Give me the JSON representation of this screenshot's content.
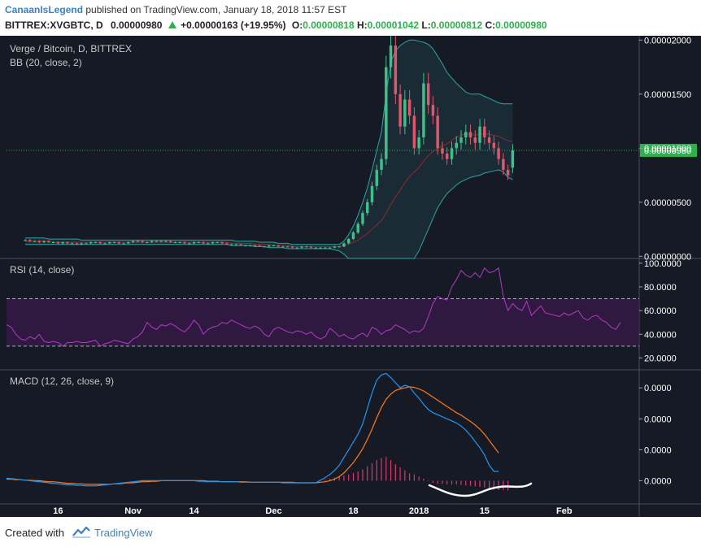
{
  "header": {
    "author": "CanaanIsLegend",
    "published_text": "published on TradingView.com, January 18, 2018 11:57 EST",
    "symbol": "BITTREX:XVGBTC, D",
    "last": "0.00000980",
    "change": "+0.00000163 (+19.95%)",
    "open_label": "O:",
    "open": "0.00000818",
    "high_label": "H:",
    "high": "0.00001042",
    "low_label": "L:",
    "low": "0.00000812",
    "close_label": "C:",
    "close": "0.00000980"
  },
  "footer": {
    "created_with": "Created with",
    "brand": "TradingView"
  },
  "colors": {
    "background": "#161a25",
    "up": "#3fbf8a",
    "down": "#e0566b",
    "bb_upper_lower": "#2aa5a5",
    "bb_basis": "#8e2b2b",
    "rsi": "#b13bc4",
    "macd": "#2196f3",
    "signal": "#ff7a1a",
    "histogram": "#e0366b",
    "last_price_tag": "#2bb24c"
  },
  "chart_data": [
    {
      "type": "candlestick",
      "title": "Verge / Bitcoin, D, BITTREX",
      "indicator_label": "BB (20, close, 2)",
      "y_ticks": [
        "0.00002000",
        "0.00001500",
        "0.00001000",
        "0.00000500",
        "0.00000000"
      ],
      "y_tick_values": [
        2e-05,
        1.5e-05,
        1e-05,
        5e-06,
        0
      ],
      "ylim": [
        -2e-07,
        2.04e-05
      ],
      "last_price_label": "0.00000980",
      "last_price": 9.8e-06,
      "x_start": "2017-10-05",
      "x_end": "2018-02-17",
      "candles": {
        "start": "2017-10-09",
        "close": [
          1.5e-06,
          1.4e-06,
          1.4e-06,
          1.3e-06,
          1.4e-06,
          1.3e-06,
          1.3e-06,
          1.2e-06,
          1.3e-06,
          1.2e-06,
          1.2e-06,
          1.1e-06,
          1.2e-06,
          1.2e-06,
          1.3e-06,
          1.3e-06,
          1.2e-06,
          1.2e-06,
          1.3e-06,
          1.3e-06,
          1.2e-06,
          1.2e-06,
          1.3e-06,
          1.4e-06,
          1.4e-06,
          1.3e-06,
          1.3e-06,
          1.4e-06,
          1.4e-06,
          1.4e-06,
          1.4e-06,
          1.3e-06,
          1.3e-06,
          1.3e-06,
          1.2e-06,
          1.2e-06,
          1.3e-06,
          1.3e-06,
          1.2e-06,
          1.2e-06,
          1.3e-06,
          1.3e-06,
          1.2e-06,
          1.1e-06,
          1.1e-06,
          1.1e-06,
          1e-06,
          1e-06,
          1e-06,
          1e-06,
          9e-07,
          9e-07,
          1e-06,
          1e-06,
          9e-07,
          9e-07,
          9e-07,
          8e-07,
          8e-07,
          9e-07,
          9e-07,
          8e-07,
          8e-07,
          8e-07,
          8e-07,
          8e-07,
          9e-07,
          9e-07,
          1.2e-06,
          1.6e-06,
          2.2e-06,
          3e-06,
          4e-06,
          5e-06,
          6.5e-06,
          8e-06,
          9e-06,
          1.75e-05,
          1.95e-05,
          1.5e-05,
          1.2e-05,
          1.45e-05,
          1.3e-05,
          1e-05,
          1.1e-05,
          1.6e-05,
          1.4e-05,
          1.3e-05,
          1e-05,
          9.5e-06,
          9e-06,
          1e-05,
          1.05e-05,
          1.1e-05,
          1.15e-05,
          1.1e-05,
          1.05e-05,
          1.2e-05,
          1.1e-05,
          1.05e-05,
          1e-05,
          9e-06,
          8e-06,
          7.5e-06,
          9.8e-06
        ],
        "open": [
          1.5e-06,
          1.5e-06,
          1.4e-06,
          1.4e-06,
          1.3e-06,
          1.4e-06,
          1.3e-06,
          1.3e-06,
          1.2e-06,
          1.3e-06,
          1.2e-06,
          1.2e-06,
          1.1e-06,
          1.2e-06,
          1.2e-06,
          1.3e-06,
          1.3e-06,
          1.2e-06,
          1.2e-06,
          1.3e-06,
          1.3e-06,
          1.2e-06,
          1.2e-06,
          1.3e-06,
          1.4e-06,
          1.4e-06,
          1.3e-06,
          1.3e-06,
          1.4e-06,
          1.4e-06,
          1.4e-06,
          1.4e-06,
          1.3e-06,
          1.3e-06,
          1.3e-06,
          1.2e-06,
          1.2e-06,
          1.3e-06,
          1.3e-06,
          1.2e-06,
          1.2e-06,
          1.3e-06,
          1.3e-06,
          1.2e-06,
          1.1e-06,
          1.1e-06,
          1.1e-06,
          1e-06,
          1e-06,
          1e-06,
          1e-06,
          9e-07,
          9e-07,
          1e-06,
          1e-06,
          9e-07,
          9e-07,
          9e-07,
          8e-07,
          8e-07,
          9e-07,
          9e-07,
          8e-07,
          8e-07,
          8e-07,
          8e-07,
          8e-07,
          9e-07,
          9e-07,
          1.2e-06,
          1.6e-06,
          2.2e-06,
          3e-06,
          4e-06,
          5e-06,
          6.5e-06,
          8e-06,
          9e-06,
          1.75e-05,
          1.95e-05,
          1.5e-05,
          1.2e-05,
          1.45e-05,
          1.3e-05,
          1e-05,
          1.1e-05,
          1.6e-05,
          1.4e-05,
          1.3e-05,
          1e-05,
          9.5e-06,
          9e-06,
          1e-05,
          1.05e-05,
          1.1e-05,
          1.15e-05,
          1.1e-05,
          1.05e-05,
          1.2e-05,
          1.1e-05,
          1.05e-05,
          1e-05,
          9e-06,
          8e-06,
          8.2e-06
        ]
      },
      "bb_upper": [
        1.7e-06,
        1.7e-06,
        1.7e-06,
        1.7e-06,
        1.7e-06,
        1.6e-06,
        1.6e-06,
        1.6e-06,
        1.6e-06,
        1.6e-06,
        1.6e-06,
        1.6e-06,
        1.5e-06,
        1.5e-06,
        1.5e-06,
        1.5e-06,
        1.5e-06,
        1.5e-06,
        1.5e-06,
        1.5e-06,
        1.5e-06,
        1.5e-06,
        1.5e-06,
        1.5e-06,
        1.5e-06,
        1.5e-06,
        1.5e-06,
        1.5e-06,
        1.5e-06,
        1.5e-06,
        1.5e-06,
        1.5e-06,
        1.5e-06,
        1.5e-06,
        1.5e-06,
        1.5e-06,
        1.5e-06,
        1.5e-06,
        1.5e-06,
        1.5e-06,
        1.5e-06,
        1.5e-06,
        1.5e-06,
        1.5e-06,
        1.5e-06,
        1.4e-06,
        1.4e-06,
        1.4e-06,
        1.4e-06,
        1.4e-06,
        1.3e-06,
        1.3e-06,
        1.3e-06,
        1.3e-06,
        1.2e-06,
        1.2e-06,
        1.2e-06,
        1.1e-06,
        1.1e-06,
        1.1e-06,
        1.1e-06,
        1.1e-06,
        1.1e-06,
        1.1e-06,
        1.1e-06,
        1.1e-06,
        1.1e-06,
        1.1e-06,
        1.4e-06,
        2e-06,
        2.8e-06,
        3.8e-06,
        5e-06,
        6.3e-06,
        8e-06,
        9.8e-06,
        1.15e-05,
        1.5e-05,
        1.8e-05,
        1.9e-05,
        1.95e-05,
        1.98e-05,
        2e-05,
        2e-05,
        1.99e-05,
        1.98e-05,
        1.96e-05,
        1.92e-05,
        1.85e-05,
        1.78e-05,
        1.7e-05,
        1.65e-05,
        1.6e-05,
        1.56e-05,
        1.52e-05,
        1.5e-05,
        1.5e-05,
        1.5e-05,
        1.48e-05,
        1.46e-05,
        1.44e-05,
        1.42e-05,
        1.41e-05,
        1.41e-05,
        1.41e-05
      ],
      "bb_basis": [
        1.4e-06,
        1.4e-06,
        1.4e-06,
        1.4e-06,
        1.4e-06,
        1.4e-06,
        1.3e-06,
        1.3e-06,
        1.3e-06,
        1.3e-06,
        1.3e-06,
        1.3e-06,
        1.3e-06,
        1.3e-06,
        1.3e-06,
        1.3e-06,
        1.3e-06,
        1.3e-06,
        1.3e-06,
        1.3e-06,
        1.3e-06,
        1.3e-06,
        1.3e-06,
        1.3e-06,
        1.3e-06,
        1.3e-06,
        1.3e-06,
        1.3e-06,
        1.3e-06,
        1.3e-06,
        1.3e-06,
        1.3e-06,
        1.3e-06,
        1.3e-06,
        1.3e-06,
        1.3e-06,
        1.3e-06,
        1.3e-06,
        1.3e-06,
        1.3e-06,
        1.3e-06,
        1.3e-06,
        1.3e-06,
        1.3e-06,
        1.2e-06,
        1.2e-06,
        1.2e-06,
        1.2e-06,
        1.2e-06,
        1.1e-06,
        1.1e-06,
        1.1e-06,
        1.1e-06,
        1e-06,
        1e-06,
        1e-06,
        1e-06,
        9e-07,
        9e-07,
        9e-07,
        9e-07,
        9e-07,
        9e-07,
        9e-07,
        9e-07,
        9e-07,
        9e-07,
        9e-07,
        1e-06,
        1.1e-06,
        1.3e-06,
        1.5e-06,
        1.8e-06,
        2.1e-06,
        2.5e-06,
        2.9e-06,
        3.3e-06,
        4e-06,
        4.8e-06,
        5.5e-06,
        6.1e-06,
        6.8e-06,
        7.4e-06,
        7.8e-06,
        8.2e-06,
        8.8e-06,
        9.3e-06,
        9.7e-06,
        1e-05,
        1.02e-05,
        1.04e-05,
        1.07e-05,
        1.1e-05,
        1.12e-05,
        1.13e-05,
        1.13e-05,
        1.12e-05,
        1.13e-05,
        1.13e-05,
        1.13e-05,
        1.12e-05,
        1.11e-05,
        1.09e-05,
        1.07e-05,
        1.06e-05
      ],
      "bb_lower": [
        1.1e-06,
        1.1e-06,
        1.1e-06,
        1.1e-06,
        1.1e-06,
        1.1e-06,
        1.1e-06,
        1.1e-06,
        1.1e-06,
        1.1e-06,
        1.1e-06,
        1.1e-06,
        1.1e-06,
        1.1e-06,
        1.1e-06,
        1.1e-06,
        1.1e-06,
        1.1e-06,
        1.1e-06,
        1.1e-06,
        1.1e-06,
        1.1e-06,
        1.1e-06,
        1.1e-06,
        1.1e-06,
        1.1e-06,
        1.1e-06,
        1.1e-06,
        1.1e-06,
        1.1e-06,
        1.1e-06,
        1.1e-06,
        1.1e-06,
        1.1e-06,
        1.1e-06,
        1.1e-06,
        1.1e-06,
        1.1e-06,
        1.1e-06,
        1.1e-06,
        1.1e-06,
        1.1e-06,
        1.1e-06,
        1.1e-06,
        1e-06,
        1e-06,
        1e-06,
        1e-06,
        1e-06,
        9e-07,
        9e-07,
        9e-07,
        8e-07,
        8e-07,
        8e-07,
        8e-07,
        7e-07,
        7e-07,
        7e-07,
        7e-07,
        7e-07,
        7e-07,
        7e-07,
        7e-07,
        7e-07,
        7e-07,
        6e-07,
        5e-07,
        2e-07,
        -2e-07,
        -4e-07,
        -6e-07,
        -8e-07,
        -1e-06,
        -1.2e-06,
        -1.4e-06,
        -1.6e-06,
        -1.8e-06,
        -2e-06,
        -2e-06,
        -2e-06,
        -1.9e-06,
        -1.5e-06,
        -8e-07,
        5e-07,
        1.5e-06,
        2.5e-06,
        3.5e-06,
        4.5e-06,
        5.2e-06,
        5.8e-06,
        6.2e-06,
        6.6e-06,
        6.9e-06,
        7.1e-06,
        7.3e-06,
        7.4e-06,
        7.5e-06,
        7.7e-06,
        7.8e-06,
        7.9e-06,
        8e-06,
        7.8e-06,
        7.3e-06,
        7.1e-06
      ]
    },
    {
      "type": "line",
      "title": "RSI (14, close)",
      "y_ticks": [
        "100.0000",
        "80.0000",
        "60.0000",
        "40.0000",
        "20.0000"
      ],
      "y_tick_values": [
        100,
        80,
        60,
        40,
        20
      ],
      "ylim": [
        10,
        104
      ],
      "band": [
        30,
        70
      ],
      "start": "2017-10-05",
      "values": [
        48,
        46,
        40,
        36,
        35,
        38,
        36,
        40,
        34,
        33,
        34,
        33,
        30,
        33,
        33,
        34,
        33,
        33,
        34,
        35,
        30,
        32,
        33,
        35,
        34,
        33,
        32,
        36,
        38,
        42,
        50,
        46,
        44,
        48,
        47,
        49,
        47,
        44,
        42,
        46,
        52,
        48,
        40,
        44,
        46,
        47,
        50,
        49,
        52,
        50,
        48,
        46,
        45,
        47,
        45,
        40,
        38,
        44,
        46,
        44,
        42,
        41,
        43,
        42,
        40,
        42,
        38,
        36,
        38,
        45,
        42,
        38,
        40,
        37,
        36,
        39,
        41,
        38,
        46,
        44,
        40,
        43,
        44,
        48,
        46,
        44,
        41,
        43,
        42,
        45,
        55,
        66,
        72,
        70,
        69,
        80,
        86,
        94,
        90,
        88,
        92,
        88,
        96,
        92,
        93,
        96,
        72,
        60,
        66,
        62,
        60,
        68,
        56,
        60,
        64,
        58,
        57,
        56,
        55,
        58,
        56,
        58,
        60,
        54,
        52,
        55,
        56,
        52,
        50,
        46,
        44,
        50
      ],
      "current": 50
    },
    {
      "type": "line",
      "title": "MACD (12, 26, close, 9)",
      "y_ticks": [
        "0.0000",
        "0.0000",
        "0.0000",
        "0.0000"
      ],
      "y_tick_values": [
        1.8e-06,
        1.2e-06,
        6e-07,
        0
      ],
      "ylim": [
        -4.5e-07,
        2.15e-06
      ],
      "series": [
        {
          "key": "macd",
          "start": "2017-10-05",
          "values": [
            5e-08,
            4e-08,
            3e-08,
            2e-08,
            1e-08,
            0,
            -1e-08,
            -2e-08,
            -3e-08,
            -4e-08,
            -5e-08,
            -6e-08,
            -7e-08,
            -8e-08,
            -8e-08,
            -9e-08,
            -9e-08,
            -1e-07,
            -1e-07,
            -1e-07,
            -9e-08,
            -8e-08,
            -7e-08,
            -6e-08,
            -5e-08,
            -4e-08,
            -3e-08,
            -2e-08,
            -1e-08,
            0,
            0,
            0,
            0,
            0,
            0,
            0,
            0,
            0,
            0,
            0,
            0,
            -1e-08,
            -1e-08,
            -2e-08,
            -2e-08,
            -2e-08,
            -2e-08,
            -2e-08,
            -2e-08,
            -2e-08,
            -3e-08,
            -3e-08,
            -3e-08,
            -3e-08,
            -3e-08,
            -3e-08,
            -3e-08,
            -3e-08,
            -3e-08,
            -4e-08,
            -4e-08,
            -4e-08,
            -4e-08,
            -4e-08,
            -4e-08,
            -4e-08,
            -4e-08,
            1e-08,
            6e-08,
            1.2e-07,
            2e-07,
            3e-07,
            4.5e-07,
            6e-07,
            7.5e-07,
            9e-07,
            1.1e-06,
            1.4e-06,
            1.7e-06,
            1.95e-06,
            2.05e-06,
            2.08e-06,
            2e-06,
            1.9e-06,
            1.8e-06,
            1.85e-06,
            1.82e-06,
            1.7e-06,
            1.6e-06,
            1.48e-06,
            1.38e-06,
            1.32e-06,
            1.28e-06,
            1.24e-06,
            1.2e-06,
            1.16e-06,
            1.12e-06,
            1.06e-06,
            9.8e-07,
            8.8e-07,
            7.6e-07,
            6.4e-07,
            5e-07,
            3e-07,
            1.8e-07,
            1.8e-07
          ]
        },
        {
          "key": "signal",
          "start": "2017-10-05",
          "values": [
            3e-08,
            3e-08,
            2e-08,
            2e-08,
            1e-08,
            1e-08,
            0,
            0,
            -1e-08,
            -2e-08,
            -2e-08,
            -3e-08,
            -4e-08,
            -5e-08,
            -5e-08,
            -6e-08,
            -6e-08,
            -7e-08,
            -7e-08,
            -7e-08,
            -7e-08,
            -7e-08,
            -7e-08,
            -6e-08,
            -6e-08,
            -5e-08,
            -4e-08,
            -4e-08,
            -3e-08,
            -2e-08,
            -2e-08,
            -1e-08,
            -1e-08,
            0,
            0,
            0,
            0,
            0,
            0,
            0,
            0,
            0,
            0,
            -1e-08,
            -1e-08,
            -1e-08,
            -2e-08,
            -2e-08,
            -2e-08,
            -2e-08,
            -2e-08,
            -2e-08,
            -3e-08,
            -3e-08,
            -3e-08,
            -3e-08,
            -3e-08,
            -3e-08,
            -3e-08,
            -3e-08,
            -3e-08,
            -3e-08,
            -4e-08,
            -4e-08,
            -4e-08,
            -4e-08,
            -4e-08,
            -3e-08,
            -2e-08,
            0,
            3e-08,
            8e-08,
            1.5e-07,
            2.5e-07,
            3.5e-07,
            4.8e-07,
            6.2e-07,
            8e-07,
            1e-06,
            1.22e-06,
            1.42e-06,
            1.58e-06,
            1.68e-06,
            1.75e-06,
            1.78e-06,
            1.8e-06,
            1.82e-06,
            1.81e-06,
            1.78e-06,
            1.74e-06,
            1.68e-06,
            1.62e-06,
            1.56e-06,
            1.5e-06,
            1.44e-06,
            1.38e-06,
            1.32e-06,
            1.27e-06,
            1.21e-06,
            1.15e-06,
            1.08e-06,
            1e-06,
            9e-07,
            7.8e-07,
            6.6e-07,
            5.4e-07
          ]
        }
      ],
      "histogram_start": "2017-12-12",
      "histogram": [
        2e-08,
        4e-08,
        6e-08,
        8e-08,
        1e-07,
        1.2e-07,
        1.5e-07,
        1.8e-07,
        2.2e-07,
        2.8e-07,
        3.4e-07,
        4e-07,
        4.4e-07,
        4.6e-07,
        4e-07,
        3.2e-07,
        2.6e-07,
        2e-07,
        1.4e-07,
        1.2e-07,
        8e-08,
        4e-08,
        1e-08,
        -4e-08,
        -6e-08,
        -6e-08,
        -7e-08,
        -7e-08,
        -7e-08,
        -8e-08,
        -9e-08,
        -1e-07,
        -1.1e-07,
        -1.2e-07,
        -1.3e-07,
        -1.5e-07,
        -1.7e-07,
        -1.8e-07,
        -1.8e-07,
        -1.9e-07
      ]
    }
  ],
  "x_axis": {
    "labels": [
      {
        "date": "2017-10-16",
        "text": "16"
      },
      {
        "date": "2017-11-01",
        "text": "Nov"
      },
      {
        "date": "2017-11-14",
        "text": "14"
      },
      {
        "date": "2017-12-01",
        "text": "Dec"
      },
      {
        "date": "2017-12-18",
        "text": "18"
      },
      {
        "date": "2018-01-01",
        "text": "2018"
      },
      {
        "date": "2018-01-15",
        "text": "15"
      },
      {
        "date": "2018-02-01",
        "text": "Feb"
      }
    ]
  }
}
